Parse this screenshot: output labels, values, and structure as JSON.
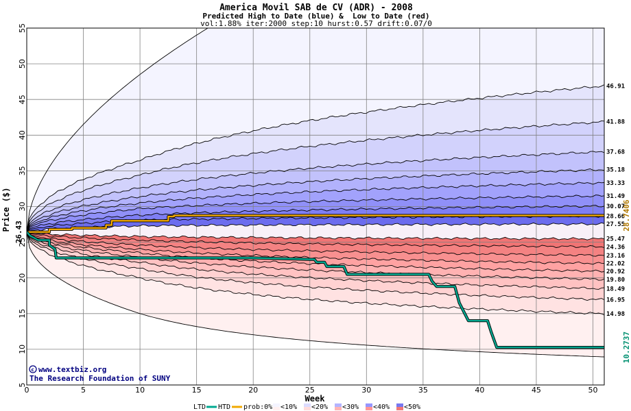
{
  "chart_data": {
    "type": "area",
    "title": "America Movil SAB de CV (ADR) - 2008",
    "subtitle": "Predicted High to Date (blue) &  Low to Date (red)",
    "params": "vol:1.88% iter:2000 step:10 hurst:0.57 drift:0.07/0",
    "xlabel": "Week",
    "ylabel": "Price ($)",
    "xlim": [
      0,
      51
    ],
    "ylim": [
      5,
      55
    ],
    "x_ticks": [
      0,
      5,
      10,
      15,
      20,
      25,
      30,
      35,
      40,
      45,
      50
    ],
    "y_ticks": [
      5,
      10,
      15,
      20,
      25,
      30,
      35,
      40,
      45,
      50,
      55
    ],
    "grid": true,
    "start_price": 26.43,
    "start_label": "26.43",
    "high_end_label": "28.7406",
    "low_end_label": "10.2737",
    "upper_quantiles": [
      {
        "label": "46.91",
        "end": 46.91,
        "w10": 36.5
      },
      {
        "label": "41.88",
        "end": 41.88,
        "w10": 34.4
      },
      {
        "label": "37.68",
        "end": 37.68,
        "w10": 32.6
      },
      {
        "label": "35.18",
        "end": 35.18,
        "w10": 31.4
      },
      {
        "label": "33.33",
        "end": 33.33,
        "w10": 30.5
      },
      {
        "label": "31.49",
        "end": 31.49,
        "w10": 29.7
      },
      {
        "label": "30.07",
        "end": 30.07,
        "w10": 28.8
      },
      {
        "label": "28.66",
        "end": 28.66,
        "w10": 28.1
      },
      {
        "label": "27.55",
        "end": 27.55,
        "w10": 27.3
      }
    ],
    "lower_quantiles": [
      {
        "label": "25.47",
        "end": 25.47,
        "w10": 25.8
      },
      {
        "label": "24.36",
        "end": 24.36,
        "w10": 25.3
      },
      {
        "label": "23.16",
        "end": 23.16,
        "w10": 24.6
      },
      {
        "label": "22.02",
        "end": 22.02,
        "w10": 24.0
      },
      {
        "label": "20.92",
        "end": 20.92,
        "w10": 23.5
      },
      {
        "label": "19.80",
        "end": 19.8,
        "w10": 22.9
      },
      {
        "label": "18.49",
        "end": 18.49,
        "w10": 22.2
      },
      {
        "label": "16.95",
        "end": 16.95,
        "w10": 21.3
      },
      {
        "label": "14.98",
        "end": 14.98,
        "w10": 20.0
      }
    ],
    "outer_upper": {
      "w1": 31,
      "w5": 40.5,
      "w10": 48.5,
      "w12.5": 55
    },
    "outer_lower": {
      "w1": 22.0,
      "w5": 17.5,
      "w10": 15.0,
      "w20": 12.4,
      "w30": 10.7,
      "w40": 9.7,
      "w51": 8.9
    },
    "series": [
      {
        "name": "HTD",
        "color": "#f0a800",
        "points": [
          [
            0,
            26.43
          ],
          [
            2,
            26.43
          ],
          [
            2,
            26.8
          ],
          [
            4,
            26.8
          ],
          [
            4,
            27.0
          ],
          [
            7,
            27.0
          ],
          [
            7,
            27.4
          ],
          [
            7.5,
            27.4
          ],
          [
            7.5,
            28.0
          ],
          [
            12.5,
            28.0
          ],
          [
            12.5,
            28.6
          ],
          [
            13,
            28.6
          ],
          [
            13,
            28.74
          ],
          [
            51,
            28.74
          ]
        ]
      },
      {
        "name": "LTD",
        "color": "#00a890",
        "points": [
          [
            0,
            26.43
          ],
          [
            0.3,
            25.9
          ],
          [
            1,
            25.3
          ],
          [
            2,
            25.3
          ],
          [
            2,
            24.6
          ],
          [
            2.5,
            24.0
          ],
          [
            2.6,
            22.8
          ],
          [
            10,
            22.8
          ],
          [
            20,
            22.8
          ],
          [
            25,
            22.6
          ],
          [
            25.4,
            22.6
          ],
          [
            25.6,
            22.2
          ],
          [
            26.3,
            22.2
          ],
          [
            26.5,
            21.6
          ],
          [
            28,
            21.6
          ],
          [
            28.3,
            20.5
          ],
          [
            35.5,
            20.5
          ],
          [
            35.8,
            19.5
          ],
          [
            36.2,
            18.8
          ],
          [
            37.8,
            18.8
          ],
          [
            38.2,
            16.5
          ],
          [
            39,
            14.0
          ],
          [
            40.7,
            14.0
          ],
          [
            41,
            12.5
          ],
          [
            41.5,
            10.27
          ],
          [
            51,
            10.27
          ]
        ]
      }
    ],
    "credit_lines": [
      "www.textbiz.org",
      "The Research Foundation of SUNY"
    ],
    "legend": {
      "ltd": "LTD",
      "htd": "HTD",
      "prob": "prob:0%",
      "bins": [
        "<10%",
        "<20%",
        "<30%",
        "<40%",
        "<50%"
      ],
      "upper_colors": [
        "#f4f4ff",
        "#dcdcff",
        "#b4b4ff",
        "#9696ff",
        "#7878f0"
      ],
      "lower_colors": [
        "#fff0f0",
        "#ffdcdc",
        "#ffb4b4",
        "#ff9696",
        "#f07878"
      ]
    }
  }
}
